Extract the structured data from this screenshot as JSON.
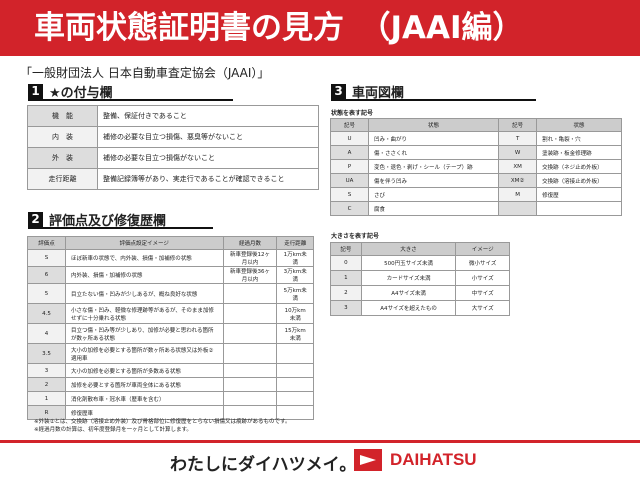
{
  "header": {
    "title": "車両状態証明書の見方　（JAAI編）"
  },
  "subtitle": "「一般財団法人 日本自動車査定協会（JAAI）」",
  "section1": {
    "num": "1",
    "title": "★の付与欄",
    "rows": [
      [
        "機　能",
        "整備、保証付きであること"
      ],
      [
        "内　装",
        "補修の必要な目立つ損傷、悪臭等がないこと"
      ],
      [
        "外　装",
        "補修の必要な目立つ損傷がないこと"
      ],
      [
        "走行距離",
        "整備記録簿等があり、実走行であることが確認できること"
      ]
    ]
  },
  "section2": {
    "num": "2",
    "title": "評価点及び修復歴欄",
    "headers": [
      "評価点",
      "評価点設定イメージ",
      "経過月数",
      "走行距離"
    ],
    "rows": [
      [
        "S",
        "ほぼ新車の状態で、内外装、損傷・加補修の状態",
        "新車登録後12ヶ月以内",
        "1万km未満"
      ],
      [
        "6",
        "内外装、損傷・加補修の状態",
        "新車登録後36ヶ月以内",
        "3万km未満"
      ],
      [
        "5",
        "目立たない傷・凹みが少しあるが、概ね良好な状態",
        "",
        "5万km未満"
      ],
      [
        "4.5",
        "小さな傷・凹み、軽微な修理跡等があるが、そのまま加修せずに十分乗れる状態",
        "",
        "10万km未満"
      ],
      [
        "4",
        "目立つ傷・凹み等が少しあり、加修が必要と思われる箇所が数ヶ所ある状態",
        "",
        "15万km未満"
      ],
      [
        "3.5",
        "大小の加修を必要とする箇所が数ヶ所ある状態又は外板②適用車",
        "",
        ""
      ],
      [
        "3",
        "大小の加修を必要とする箇所が多数ある状態",
        "",
        ""
      ],
      [
        "2",
        "加修を必要とする箇所が車両全体にある状態",
        "",
        ""
      ],
      [
        "1",
        "消化剤散布車・冠水車（歴車を含む）",
        "",
        ""
      ],
      [
        "R",
        "修復歴車",
        "",
        ""
      ]
    ]
  },
  "section3": {
    "num": "3",
    "title": "車両図欄",
    "state_label": "状態を表す記号",
    "state_headers": [
      "記号",
      "状態",
      "記号",
      "状態"
    ],
    "state_rows": [
      [
        "U",
        "凹み・曲がり",
        "T",
        "割れ・亀裂・穴"
      ],
      [
        "A",
        "傷・ささくれ",
        "W",
        "塗装跡・板金修理跡"
      ],
      [
        "P",
        "変色・退色・剥げ・シール（テープ）跡",
        "XM",
        "交換跡（ネジ止め外板）"
      ],
      [
        "UA",
        "傷を伴う凹み",
        "XM②",
        "交換跡（溶接止め外板）"
      ],
      [
        "S",
        "さび",
        "M",
        "修復歴"
      ],
      [
        "C",
        "腐食",
        "",
        ""
      ]
    ],
    "size_label": "大きさを表す記号",
    "size_headers": [
      "記号",
      "大きさ",
      "イメージ"
    ],
    "size_rows": [
      [
        "0",
        "500円玉サイズ未満",
        "微小サイズ"
      ],
      [
        "1",
        "カードサイズ未満",
        "小サイズ"
      ],
      [
        "2",
        "A4サイズ未満",
        "中サイズ"
      ],
      [
        "3",
        "A4サイズを超えたもの",
        "大サイズ"
      ]
    ]
  },
  "notes": [
    "※外装②とは、交換跡（溶接止め外装）及び骨格部位に修復歴をとらない損傷又は痕跡があるものです。",
    "※経過月数の計算は、初年度登録月を一ヶ月として計算します。"
  ],
  "footer": {
    "slogan": "わたしにダイハツメイ。",
    "brand": "DAIHATSU"
  },
  "colors": {
    "accent": "#d2232a"
  }
}
